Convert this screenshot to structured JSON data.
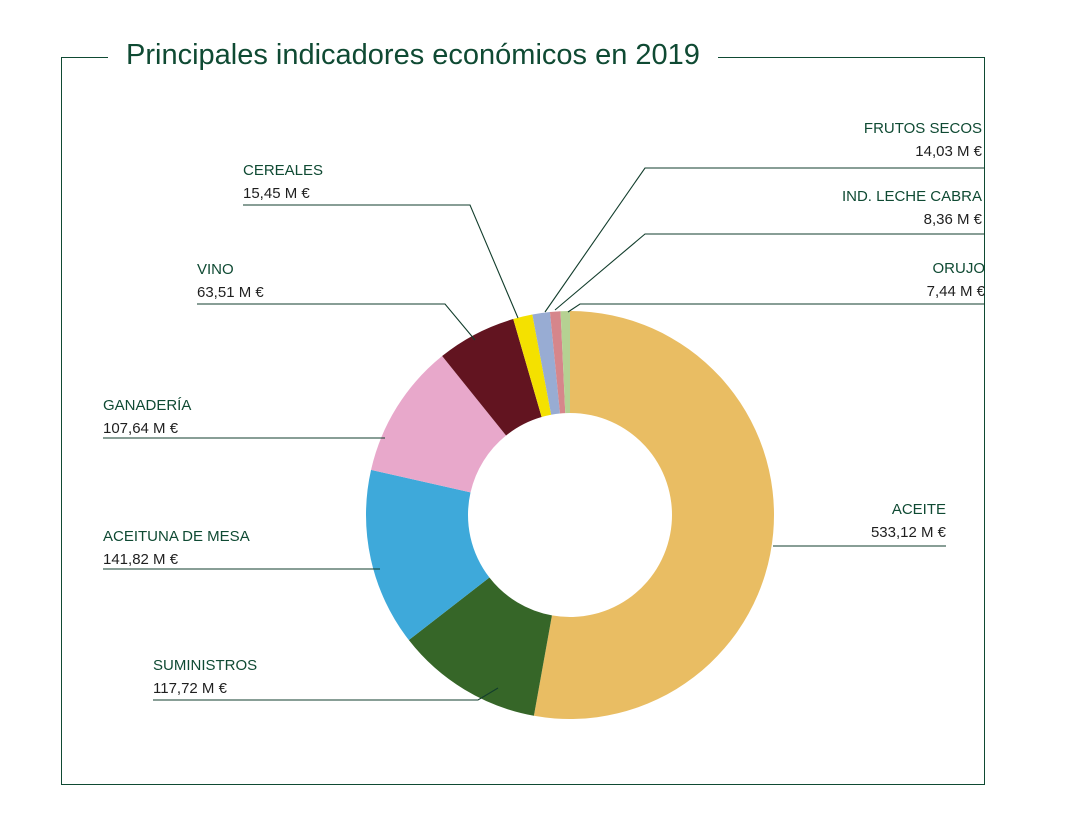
{
  "chart_data": {
    "type": "pie",
    "variant": "donut",
    "title": "Principales indicadores económicos en 2019",
    "slices": [
      {
        "label": "ACEITE",
        "value": 533.12,
        "value_text": "533,12 M €",
        "color": "#e9bd63"
      },
      {
        "label": "SUMINISTROS",
        "value": 117.72,
        "value_text": "117,72 M €",
        "color": "#366628"
      },
      {
        "label": "ACEITUNA DE MESA",
        "value": 141.82,
        "value_text": "141,82 M €",
        "color": "#3ea9da"
      },
      {
        "label": "GANADERÍA",
        "value": 107.64,
        "value_text": "107,64 M €",
        "color": "#e8a8cb"
      },
      {
        "label": "VINO",
        "value": 63.51,
        "value_text": "63,51 M €",
        "color": "#621420"
      },
      {
        "label": "CEREALES",
        "value": 15.45,
        "value_text": "15,45 M €",
        "color": "#f4e100"
      },
      {
        "label": "FRUTOS SECOS",
        "value": 14.03,
        "value_text": "14,03 M €",
        "color": "#98acd3"
      },
      {
        "label": "IND. LECHE CABRA",
        "value": 8.36,
        "value_text": "8,36 M €",
        "color": "#d6868b"
      },
      {
        "label": "ORUJO",
        "value": 7.44,
        "value_text": "7,44 M €",
        "color": "#b5d192"
      }
    ]
  }
}
